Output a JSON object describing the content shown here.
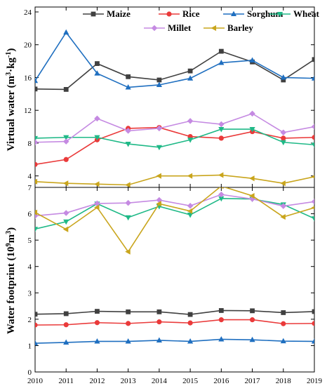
{
  "chart_data": [
    {
      "type": "line",
      "panel": "top",
      "ylabel_main": "Virtual water (m",
      "ylabel_sup1": "3",
      "ylabel_mid": "·kg",
      "ylabel_sup2": "-1",
      "ylabel_end": ")",
      "ylim": [
        2.6,
        24.6
      ],
      "yticks": [
        4,
        8,
        12,
        16,
        20,
        24
      ],
      "x": [
        2010,
        2011,
        2012,
        2013,
        2014,
        2015,
        2016,
        2017,
        2018,
        2019
      ],
      "legend_position": "top",
      "series": [
        {
          "name": "Maize",
          "color": "#404040",
          "marker": "square",
          "values": [
            14.6,
            14.55,
            17.7,
            16.1,
            15.7,
            16.8,
            19.2,
            17.9,
            15.7,
            18.2
          ]
        },
        {
          "name": "Rice",
          "color": "#ea3a3a",
          "marker": "circle",
          "values": [
            5.4,
            6.0,
            8.4,
            9.8,
            9.9,
            8.8,
            8.6,
            9.4,
            8.6,
            8.7
          ]
        },
        {
          "name": "Sorghum",
          "color": "#1f6fc0",
          "marker": "triangle-up",
          "values": [
            15.6,
            21.5,
            16.5,
            14.8,
            15.1,
            15.9,
            17.8,
            18.1,
            16.0,
            15.9
          ]
        },
        {
          "name": "Wheat",
          "color": "#1fb987",
          "marker": "triangle-down",
          "values": [
            8.6,
            8.7,
            8.7,
            7.9,
            7.5,
            8.4,
            9.7,
            9.7,
            8.1,
            7.8
          ]
        },
        {
          "name": "Millet",
          "color": "#c58ae2",
          "marker": "diamond",
          "values": [
            8.1,
            8.2,
            11.0,
            9.5,
            9.8,
            10.7,
            10.3,
            11.6,
            9.3,
            10.0
          ]
        },
        {
          "name": "Barley",
          "color": "#c9a51c",
          "marker": "triangle-left",
          "values": [
            3.3,
            3.1,
            3.0,
            2.9,
            4.0,
            4.0,
            4.1,
            3.7,
            3.1,
            3.9
          ]
        }
      ]
    },
    {
      "type": "line",
      "panel": "bottom",
      "ylabel_main": "Water footprint (10",
      "ylabel_sup1": "9",
      "ylabel_mid": "m",
      "ylabel_sup2": "3",
      "ylabel_end": ")",
      "ylim": [
        0,
        7
      ],
      "yticks": [
        0,
        1,
        2,
        3,
        4,
        5,
        6,
        7
      ],
      "x": [
        2010,
        2011,
        2012,
        2013,
        2014,
        2015,
        2016,
        2017,
        2018,
        2019
      ],
      "xtick_labels": [
        "2010",
        "2011",
        "2012",
        "2013",
        "2014",
        "2015",
        "2016",
        "2017",
        "2018",
        "2019"
      ],
      "series": [
        {
          "name": "Maize",
          "color": "#404040",
          "marker": "square",
          "values": [
            2.19,
            2.21,
            2.3,
            2.28,
            2.28,
            2.18,
            2.33,
            2.32,
            2.25,
            2.29
          ]
        },
        {
          "name": "Rice",
          "color": "#ea3a3a",
          "marker": "circle",
          "values": [
            1.78,
            1.79,
            1.87,
            1.84,
            1.9,
            1.86,
            1.98,
            1.98,
            1.83,
            1.84
          ]
        },
        {
          "name": "Sorghum",
          "color": "#1f6fc0",
          "marker": "triangle-up",
          "values": [
            1.09,
            1.12,
            1.16,
            1.16,
            1.2,
            1.16,
            1.24,
            1.22,
            1.17,
            1.16
          ]
        },
        {
          "name": "Wheat",
          "color": "#1fb987",
          "marker": "triangle-down",
          "values": [
            5.42,
            5.7,
            6.38,
            5.86,
            6.28,
            5.96,
            6.58,
            6.56,
            6.35,
            5.82
          ]
        },
        {
          "name": "Millet",
          "color": "#c58ae2",
          "marker": "diamond",
          "values": [
            5.92,
            6.03,
            6.39,
            6.41,
            6.52,
            6.3,
            6.73,
            6.56,
            6.29,
            6.46
          ]
        },
        {
          "name": "Barley",
          "color": "#c9a51c",
          "marker": "triangle-left",
          "values": [
            6.05,
            5.41,
            6.24,
            4.56,
            6.38,
            6.1,
            7.05,
            6.68,
            5.88,
            6.23
          ]
        }
      ]
    }
  ]
}
